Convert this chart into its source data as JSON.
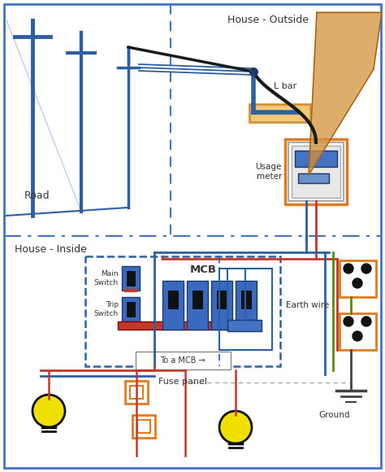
{
  "bg_color": "#ffffff",
  "border_color": "#4472c4",
  "title_outside": "House - Outside",
  "title_inside": "House - Inside",
  "road_label": "Road",
  "pole_color": "#2e5fa3",
  "wire_color_black": "#1a1a1a",
  "wire_color_blue": "#2e5fa3",
  "wire_color_red": "#c0392b",
  "wire_color_green": "#5a8a00",
  "wire_color_orange": "#d4913a",
  "meter_box_color": "#e07b20",
  "fuse_panel_dash_color": "#2e5fa3",
  "lamp_color": "#f0e000",
  "socket_color": "#e07b20",
  "label_lbar": "L bar",
  "label_meter": "Usage\nmeter",
  "label_fuse": "Fuse panel",
  "label_earth": "Earth wire",
  "label_ground": "Ground",
  "label_main_switch": "Main\nSwitch",
  "label_trip_switch": "Trip\nSwitch",
  "label_mcb": "MCB",
  "label_to_mcb": "To a MCB →"
}
